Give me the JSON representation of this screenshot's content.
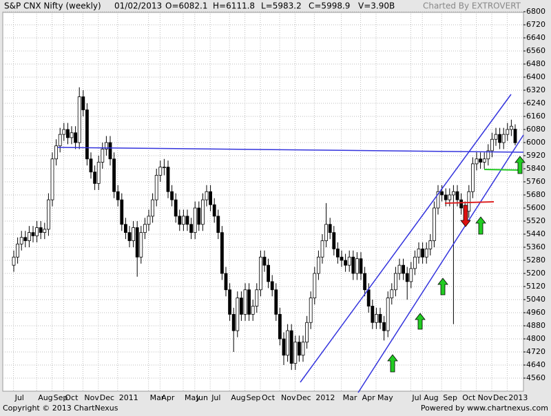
{
  "header": {
    "title": "S&P CNX Nifty (weekly)",
    "date": "01/02/2013",
    "open": "O=6082.1",
    "high": "H=6111.8",
    "low": "L=5983.2",
    "close": "C=5998.9",
    "volume": "V=3.90B",
    "credit": "Charted By EXTROVERT"
  },
  "footer": {
    "copyright": "Copyright © 2013 ChartNexus",
    "powered": "Powered by www.chartnexus.com"
  },
  "chart_data": {
    "type": "candlestick",
    "grid": true,
    "up_color": "#ffffff",
    "down_color": "#000000",
    "ylim": [
      4560,
      6800
    ],
    "yticks": [
      4560,
      4640,
      4720,
      4800,
      4880,
      4960,
      5040,
      5120,
      5200,
      5280,
      5360,
      5440,
      5520,
      5600,
      5680,
      5760,
      5840,
      5920,
      6000,
      6080,
      6160,
      6240,
      6320,
      6400,
      6480,
      6560,
      6640,
      6720,
      6800
    ],
    "categories": [
      null,
      "Jul",
      null,
      null,
      null,
      null,
      null,
      "Aug",
      null,
      null,
      null,
      "Sep",
      null,
      null,
      "Oct",
      null,
      null,
      null,
      null,
      "Nov",
      null,
      null,
      null,
      "Dec",
      null,
      null,
      null,
      null,
      "2011",
      null,
      null,
      null,
      null,
      null,
      null,
      null,
      "Mar",
      null,
      null,
      "Apr",
      null,
      null,
      null,
      null,
      null,
      "May",
      null,
      null,
      "Jun",
      null,
      null,
      null,
      "Jul",
      null,
      null,
      null,
      null,
      "Aug",
      null,
      null,
      null,
      "Sep",
      null,
      null,
      null,
      "Oct",
      null,
      null,
      null,
      null,
      "Nov",
      null,
      null,
      null,
      "Dec",
      null,
      null,
      null,
      null,
      "2012",
      null,
      null,
      null,
      null,
      null,
      null,
      "Mar",
      null,
      null,
      null,
      null,
      "Apr",
      null,
      null,
      null,
      "May",
      null,
      null,
      null,
      null,
      null,
      null,
      null,
      null,
      "Jul",
      null,
      null,
      "Aug",
      null,
      null,
      null,
      null,
      "Sep",
      null,
      null,
      null,
      null,
      "Oct",
      null,
      null,
      null,
      "Nov",
      null,
      null,
      null,
      "Dec",
      null,
      null,
      null,
      "2013",
      null
    ],
    "open": [
      5250,
      5300,
      5380,
      5420,
      5400,
      5450,
      5430,
      5480,
      5450,
      5470,
      5650,
      5900,
      5980,
      6050,
      6080,
      6030,
      6060,
      6000,
      6280,
      6200,
      5900,
      5820,
      5750,
      5880,
      5960,
      6000,
      5900,
      5700,
      5650,
      5500,
      5450,
      5400,
      5480,
      5300,
      5450,
      5500,
      5550,
      5650,
      5800,
      5850,
      5850,
      5700,
      5650,
      5550,
      5500,
      5550,
      5500,
      5450,
      5600,
      5500,
      5650,
      5700,
      5620,
      5550,
      5450,
      5200,
      5100,
      4950,
      4850,
      5050,
      4950,
      5100,
      4950,
      5000,
      5100,
      5300,
      5250,
      5150,
      5100,
      4950,
      4800,
      4700,
      4850,
      4650,
      4780,
      4700,
      4780,
      4900,
      5050,
      5200,
      5300,
      5400,
      5500,
      5450,
      5350,
      5300,
      5280,
      5250,
      5300,
      5200,
      5290,
      5200,
      5100,
      5000,
      4900,
      4950,
      4900,
      4850,
      5050,
      5100,
      5200,
      5250,
      5200,
      5150,
      5230,
      5300,
      5350,
      5300,
      5350,
      5400,
      5600,
      5700,
      5680,
      5650,
      5680,
      5700,
      5650,
      5600,
      5580,
      5700,
      5870,
      5900,
      5880,
      5900,
      5950,
      6020,
      6050,
      6000,
      6050,
      6080,
      6082.1
    ],
    "high": [
      5340,
      5420,
      5460,
      5460,
      5490,
      5490,
      5520,
      5520,
      5510,
      5690,
      5940,
      6020,
      6090,
      6120,
      6120,
      6100,
      6100,
      6338,
      6320,
      6240,
      5940,
      5860,
      5920,
      6000,
      6040,
      6040,
      5940,
      5740,
      5690,
      5540,
      5490,
      5520,
      5520,
      5490,
      5540,
      5590,
      5690,
      5840,
      5890,
      5900,
      5890,
      5740,
      5690,
      5590,
      5590,
      5590,
      5540,
      5640,
      5640,
      5690,
      5740,
      5740,
      5660,
      5590,
      5490,
      5240,
      5140,
      4990,
      5090,
      5090,
      5140,
      5140,
      5040,
      5140,
      5340,
      5340,
      5290,
      5190,
      5140,
      4990,
      4840,
      4890,
      4890,
      4820,
      4820,
      4820,
      4940,
      5090,
      5240,
      5340,
      5440,
      5630,
      5540,
      5490,
      5390,
      5340,
      5320,
      5340,
      5340,
      5330,
      5330,
      5240,
      5140,
      5040,
      4990,
      4990,
      4940,
      5090,
      5140,
      5240,
      5290,
      5290,
      5240,
      5270,
      5340,
      5390,
      5390,
      5390,
      5440,
      5640,
      5740,
      5740,
      5720,
      5720,
      5740,
      5740,
      5690,
      5640,
      5740,
      5910,
      5940,
      5940,
      5940,
      5990,
      6060,
      6090,
      6090,
      6090,
      6120,
      6140,
      6111.8
    ],
    "low": [
      5210,
      5260,
      5340,
      5360,
      5360,
      5390,
      5390,
      5410,
      5410,
      5430,
      5610,
      5860,
      5940,
      6010,
      5990,
      5990,
      5960,
      5960,
      6160,
      5860,
      5780,
      5710,
      5710,
      5840,
      5920,
      5860,
      5660,
      5610,
      5460,
      5410,
      5360,
      5360,
      5180,
      5260,
      5410,
      5460,
      5510,
      5610,
      5760,
      5800,
      5660,
      5610,
      5510,
      5460,
      5460,
      5460,
      5410,
      5410,
      5460,
      5460,
      5610,
      5580,
      5510,
      5410,
      5160,
      5060,
      4910,
      4720,
      4810,
      4910,
      4910,
      4910,
      4910,
      4960,
      5060,
      5210,
      5110,
      5060,
      4910,
      4760,
      4640,
      4660,
      4610,
      4610,
      4660,
      4660,
      4740,
      4860,
      5010,
      5160,
      5260,
      5360,
      5410,
      5310,
      5260,
      5240,
      5210,
      5210,
      5160,
      5160,
      5160,
      5060,
      4960,
      4860,
      4860,
      4860,
      4790,
      4810,
      5010,
      5060,
      5160,
      5160,
      5040,
      5110,
      5190,
      5260,
      5260,
      5260,
      5310,
      5360,
      5560,
      5640,
      5610,
      5610,
      4890,
      5610,
      5560,
      5540,
      5540,
      5660,
      5830,
      5840,
      5840,
      5860,
      5910,
      5980,
      5960,
      5960,
      6010,
      6040,
      5983.2
    ],
    "close": [
      5300,
      5380,
      5420,
      5400,
      5450,
      5430,
      5480,
      5450,
      5470,
      5650,
      5900,
      5980,
      6050,
      6080,
      6030,
      6060,
      6000,
      6280,
      6200,
      5900,
      5820,
      5750,
      5880,
      5960,
      6000,
      5900,
      5700,
      5650,
      5500,
      5450,
      5400,
      5480,
      5300,
      5450,
      5500,
      5550,
      5650,
      5800,
      5850,
      5850,
      5700,
      5650,
      5550,
      5500,
      5550,
      5500,
      5450,
      5600,
      5500,
      5650,
      5700,
      5620,
      5550,
      5450,
      5200,
      5100,
      4950,
      4850,
      5050,
      4950,
      5100,
      4950,
      5000,
      5100,
      5300,
      5250,
      5150,
      5100,
      4950,
      4800,
      4700,
      4850,
      4650,
      4780,
      4700,
      4780,
      4900,
      5050,
      5200,
      5300,
      5400,
      5500,
      5450,
      5350,
      5300,
      5280,
      5250,
      5300,
      5200,
      5290,
      5200,
      5100,
      5000,
      4900,
      4950,
      4900,
      4850,
      5050,
      5100,
      5200,
      5250,
      5200,
      5150,
      5230,
      5300,
      5350,
      5300,
      5350,
      5400,
      5600,
      5700,
      5680,
      5650,
      5680,
      5700,
      5650,
      5600,
      5580,
      5700,
      5870,
      5900,
      5880,
      5900,
      5950,
      6020,
      6050,
      6000,
      6050,
      6080,
      6100,
      5998.9
    ]
  }
}
